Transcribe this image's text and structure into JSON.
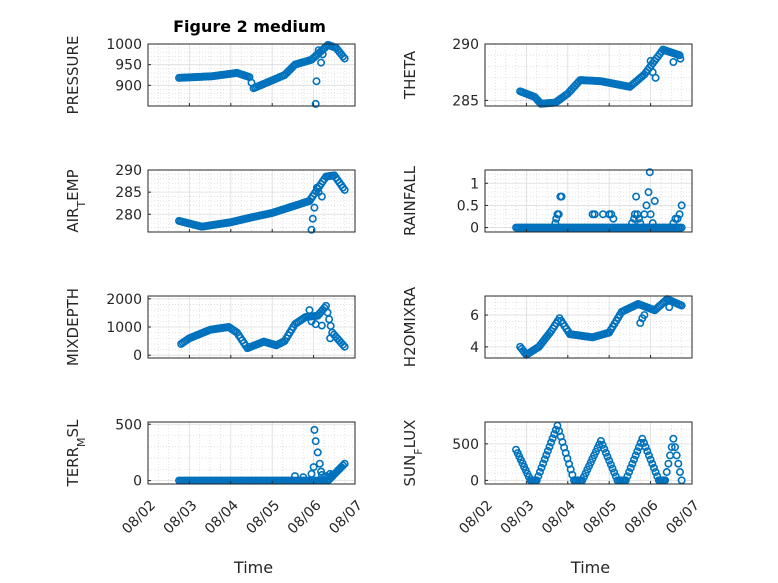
{
  "figure": {
    "title": "Figure 2 medium",
    "xlabel": "Time",
    "xticks": [
      "08/02",
      "08/03",
      "08/04",
      "08/05",
      "08/06",
      "08/07"
    ]
  },
  "colors": {
    "marker": "#0072BD",
    "grid": "#dcdcdc",
    "axis": "#262626",
    "text": "#262626"
  },
  "chart_data": [
    {
      "type": "scatter",
      "panel": "pressure",
      "title": "Figure 2 medium",
      "ylabel": "PRESSURE",
      "ylabel_parts": [
        {
          "t": "PRESSURE"
        }
      ],
      "ylim": [
        850,
        1000
      ],
      "yticks": [
        900,
        950,
        1000
      ],
      "xlim": [
        0,
        5
      ],
      "segments": [
        {
          "x": [
            0.75,
            1.55
          ],
          "y": [
            918,
            922
          ]
        },
        {
          "x": [
            1.55,
            2.15
          ],
          "y": [
            922,
            930
          ]
        },
        {
          "x": [
            2.15,
            2.45
          ],
          "y": [
            930,
            920
          ]
        },
        {
          "x": [
            2.45,
            2.55
          ],
          "y": [
            920,
            893
          ]
        },
        {
          "x": [
            2.55,
            3.0
          ],
          "y": [
            893,
            912
          ]
        },
        {
          "x": [
            3.0,
            3.3
          ],
          "y": [
            912,
            925
          ]
        },
        {
          "x": [
            3.3,
            3.55
          ],
          "y": [
            925,
            950
          ]
        },
        {
          "x": [
            3.55,
            3.95
          ],
          "y": [
            950,
            962
          ]
        },
        {
          "x": [
            3.95,
            4.35
          ],
          "y": [
            962,
            998
          ]
        },
        {
          "x": [
            4.35,
            4.55
          ],
          "y": [
            998,
            990
          ]
        },
        {
          "x": [
            4.55,
            4.75
          ],
          "y": [
            990,
            965
          ]
        }
      ],
      "extra": [
        [
          4.05,
          855
        ],
        [
          4.07,
          910
        ],
        [
          4.12,
          985
        ],
        [
          4.18,
          955
        ],
        [
          4.22,
          975
        ]
      ]
    },
    {
      "type": "scatter",
      "panel": "theta",
      "ylabel": "THETA",
      "ylabel_parts": [
        {
          "t": "THETA"
        }
      ],
      "ylim": [
        284.5,
        290
      ],
      "yticks": [
        285,
        290
      ],
      "xlim": [
        0,
        5
      ],
      "segments": [
        {
          "x": [
            0.85,
            1.2
          ],
          "y": [
            285.8,
            285.3
          ]
        },
        {
          "x": [
            1.2,
            1.35
          ],
          "y": [
            285.3,
            284.7
          ]
        },
        {
          "x": [
            1.35,
            1.7
          ],
          "y": [
            284.7,
            284.8
          ]
        },
        {
          "x": [
            1.7,
            2.0
          ],
          "y": [
            284.8,
            285.6
          ]
        },
        {
          "x": [
            2.0,
            2.3
          ],
          "y": [
            285.6,
            286.8
          ]
        },
        {
          "x": [
            2.3,
            2.8
          ],
          "y": [
            286.8,
            286.7
          ]
        },
        {
          "x": [
            2.8,
            3.5
          ],
          "y": [
            286.7,
            286.2
          ]
        },
        {
          "x": [
            3.5,
            3.85
          ],
          "y": [
            286.2,
            287.3
          ]
        },
        {
          "x": [
            3.85,
            4.3
          ],
          "y": [
            287.3,
            289.5
          ]
        },
        {
          "x": [
            4.3,
            4.7
          ],
          "y": [
            289.5,
            289.0
          ]
        }
      ],
      "extra": [
        [
          4.0,
          288.5
        ],
        [
          4.05,
          287.5
        ],
        [
          4.12,
          287.0
        ],
        [
          4.55,
          288.4
        ],
        [
          4.72,
          288.7
        ]
      ]
    },
    {
      "type": "scatter",
      "panel": "air_temp",
      "ylabel": "AIR_TEMP",
      "ylabel_parts": [
        {
          "t": "AIR"
        },
        {
          "t": "T",
          "sub": true
        },
        {
          "t": "EMP"
        }
      ],
      "ylim": [
        276,
        290
      ],
      "yticks": [
        280,
        285,
        290
      ],
      "xlim": [
        0,
        5
      ],
      "segments": [
        {
          "x": [
            0.75,
            1.3
          ],
          "y": [
            278.5,
            277.2
          ]
        },
        {
          "x": [
            1.3,
            2.0
          ],
          "y": [
            277.2,
            278.2
          ]
        },
        {
          "x": [
            2.0,
            2.5
          ],
          "y": [
            278.2,
            279.3
          ]
        },
        {
          "x": [
            2.5,
            3.0
          ],
          "y": [
            279.3,
            280.3
          ]
        },
        {
          "x": [
            3.0,
            3.4
          ],
          "y": [
            280.3,
            281.5
          ]
        },
        {
          "x": [
            3.4,
            3.9
          ],
          "y": [
            281.5,
            283.0
          ]
        },
        {
          "x": [
            3.9,
            4.3
          ],
          "y": [
            283.0,
            288.5
          ]
        },
        {
          "x": [
            4.3,
            4.5
          ],
          "y": [
            288.5,
            288.8
          ]
        },
        {
          "x": [
            4.5,
            4.75
          ],
          "y": [
            288.8,
            285.5
          ]
        }
      ],
      "extra": [
        [
          3.95,
          276.5
        ],
        [
          3.98,
          279.0
        ],
        [
          4.02,
          281.5
        ],
        [
          4.08,
          286.0
        ],
        [
          4.12,
          285.0
        ],
        [
          4.2,
          284.0
        ]
      ]
    },
    {
      "type": "scatter",
      "panel": "rainfall",
      "ylabel": "RAINFALL",
      "ylabel_parts": [
        {
          "t": "RAINFALL"
        }
      ],
      "ylim": [
        -0.1,
        1.3
      ],
      "yticks": [
        0,
        0.5,
        1
      ],
      "xlim": [
        0,
        5
      ],
      "segments": [
        {
          "x": [
            0.75,
            4.75
          ],
          "y": [
            0,
            0
          ]
        }
      ],
      "extra": [
        [
          1.7,
          0.1
        ],
        [
          1.72,
          0.2
        ],
        [
          1.75,
          0.3
        ],
        [
          1.78,
          0.3
        ],
        [
          1.82,
          0.7
        ],
        [
          1.85,
          0.7
        ],
        [
          2.6,
          0.3
        ],
        [
          2.65,
          0.3
        ],
        [
          2.85,
          0.3
        ],
        [
          3.0,
          0.3
        ],
        [
          3.05,
          0.3
        ],
        [
          3.1,
          0.2
        ],
        [
          3.55,
          0.1
        ],
        [
          3.6,
          0.2
        ],
        [
          3.62,
          0.3
        ],
        [
          3.65,
          0.7
        ],
        [
          3.68,
          0.3
        ],
        [
          3.72,
          0.2
        ],
        [
          3.75,
          0.1
        ],
        [
          3.85,
          0.3
        ],
        [
          3.9,
          0.5
        ],
        [
          3.95,
          0.8
        ],
        [
          3.98,
          1.25
        ],
        [
          4.0,
          0.3
        ],
        [
          4.05,
          0.1
        ],
        [
          4.1,
          0.6
        ],
        [
          4.55,
          0.1
        ],
        [
          4.6,
          0.2
        ],
        [
          4.65,
          0.2
        ],
        [
          4.7,
          0.3
        ],
        [
          4.75,
          0.5
        ]
      ]
    },
    {
      "type": "scatter",
      "panel": "mixdepth",
      "ylabel": "MIXDEPTH",
      "ylabel_parts": [
        {
          "t": "MIXDEPTH"
        }
      ],
      "ylim": [
        -100,
        2100
      ],
      "yticks": [
        0,
        1000,
        2000
      ],
      "xlim": [
        0,
        5
      ],
      "segments": [
        {
          "x": [
            0.8,
            1.0
          ],
          "y": [
            400,
            600
          ]
        },
        {
          "x": [
            1.0,
            1.5
          ],
          "y": [
            600,
            900
          ]
        },
        {
          "x": [
            1.5,
            1.95
          ],
          "y": [
            900,
            1000
          ]
        },
        {
          "x": [
            1.95,
            2.15
          ],
          "y": [
            1000,
            800
          ]
        },
        {
          "x": [
            2.15,
            2.4
          ],
          "y": [
            800,
            250
          ]
        },
        {
          "x": [
            2.4,
            2.8
          ],
          "y": [
            250,
            480
          ]
        },
        {
          "x": [
            2.8,
            3.1
          ],
          "y": [
            480,
            350
          ]
        },
        {
          "x": [
            3.1,
            3.3
          ],
          "y": [
            350,
            500
          ]
        },
        {
          "x": [
            3.3,
            3.55
          ],
          "y": [
            500,
            1100
          ]
        },
        {
          "x": [
            3.55,
            3.8
          ],
          "y": [
            1100,
            1350
          ]
        },
        {
          "x": [
            3.8,
            4.1
          ],
          "y": [
            1350,
            1400
          ]
        },
        {
          "x": [
            4.1,
            4.3
          ],
          "y": [
            1400,
            1750
          ]
        },
        {
          "x": [
            4.3,
            4.45
          ],
          "y": [
            1750,
            800
          ]
        },
        {
          "x": [
            4.45,
            4.75
          ],
          "y": [
            800,
            300
          ]
        }
      ],
      "extra": [
        [
          3.9,
          1600
        ],
        [
          3.95,
          1200
        ],
        [
          4.05,
          1100
        ],
        [
          4.2,
          1050
        ],
        [
          4.4,
          600
        ]
      ]
    },
    {
      "type": "scatter",
      "panel": "h2omixra",
      "ylabel": "H2OMIXRA",
      "ylabel_parts": [
        {
          "t": "H2OMIXRA"
        }
      ],
      "ylim": [
        3.3,
        7.2
      ],
      "yticks": [
        4,
        6
      ],
      "xlim": [
        0,
        5
      ],
      "segments": [
        {
          "x": [
            0.85,
            1.0
          ],
          "y": [
            4.0,
            3.5
          ]
        },
        {
          "x": [
            1.0,
            1.3
          ],
          "y": [
            3.5,
            4.0
          ]
        },
        {
          "x": [
            1.3,
            1.6
          ],
          "y": [
            4.0,
            5.0
          ]
        },
        {
          "x": [
            1.6,
            1.8
          ],
          "y": [
            5.0,
            5.8
          ]
        },
        {
          "x": [
            1.8,
            2.05
          ],
          "y": [
            5.8,
            4.8
          ]
        },
        {
          "x": [
            2.05,
            2.6
          ],
          "y": [
            4.8,
            4.6
          ]
        },
        {
          "x": [
            2.6,
            3.0
          ],
          "y": [
            4.6,
            4.9
          ]
        },
        {
          "x": [
            3.0,
            3.3
          ],
          "y": [
            4.9,
            6.2
          ]
        },
        {
          "x": [
            3.3,
            3.7
          ],
          "y": [
            6.2,
            6.7
          ]
        },
        {
          "x": [
            3.7,
            4.1
          ],
          "y": [
            6.7,
            6.3
          ]
        },
        {
          "x": [
            4.1,
            4.4
          ],
          "y": [
            6.3,
            7.0
          ]
        },
        {
          "x": [
            4.4,
            4.75
          ],
          "y": [
            7.0,
            6.6
          ]
        }
      ],
      "extra": [
        [
          3.75,
          5.5
        ],
        [
          3.8,
          5.8
        ],
        [
          3.85,
          6.0
        ],
        [
          4.45,
          6.5
        ]
      ]
    },
    {
      "type": "scatter",
      "panel": "terr_msl",
      "ylabel": "TERR_MSL",
      "ylabel_parts": [
        {
          "t": "TERR"
        },
        {
          "t": "M",
          "sub": true
        },
        {
          "t": "SL"
        }
      ],
      "ylim": [
        -30,
        520
      ],
      "yticks": [
        0,
        500
      ],
      "xlim": [
        0,
        5
      ],
      "segments": [
        {
          "x": [
            0.75,
            4.35
          ],
          "y": [
            0,
            0
          ]
        },
        {
          "x": [
            4.35,
            4.75
          ],
          "y": [
            0,
            150
          ]
        }
      ],
      "extra": [
        [
          3.55,
          40
        ],
        [
          3.75,
          30
        ],
        [
          3.95,
          60
        ],
        [
          4.0,
          120
        ],
        [
          4.02,
          450
        ],
        [
          4.05,
          350
        ],
        [
          4.1,
          250
        ],
        [
          4.15,
          150
        ],
        [
          4.18,
          80
        ],
        [
          4.2,
          50
        ],
        [
          4.25,
          30
        ],
        [
          4.3,
          40
        ],
        [
          4.4,
          60
        ],
        [
          4.45,
          50
        ]
      ]
    },
    {
      "type": "scatter",
      "panel": "sun_flux",
      "ylabel": "SUN_FLUX",
      "ylabel_parts": [
        {
          "t": "SUN"
        },
        {
          "t": "F",
          "sub": true
        },
        {
          "t": "LUX"
        }
      ],
      "ylim": [
        -50,
        800
      ],
      "yticks": [
        0,
        500
      ],
      "xlim": [
        0,
        5
      ],
      "segments": [
        {
          "x": [
            0.75,
            1.1
          ],
          "y": [
            420,
            0
          ]
        },
        {
          "x": [
            1.1,
            1.25
          ],
          "y": [
            0,
            0
          ]
        },
        {
          "x": [
            1.25,
            1.75
          ],
          "y": [
            0,
            750
          ]
        },
        {
          "x": [
            1.75,
            2.15
          ],
          "y": [
            750,
            0
          ]
        },
        {
          "x": [
            2.15,
            2.35
          ],
          "y": [
            0,
            0
          ]
        },
        {
          "x": [
            2.35,
            2.8
          ],
          "y": [
            0,
            540
          ]
        },
        {
          "x": [
            2.8,
            3.2
          ],
          "y": [
            540,
            0
          ]
        },
        {
          "x": [
            3.2,
            3.4
          ],
          "y": [
            0,
            0
          ]
        },
        {
          "x": [
            3.4,
            3.8
          ],
          "y": [
            0,
            570
          ]
        },
        {
          "x": [
            3.8,
            4.2
          ],
          "y": [
            570,
            0
          ]
        },
        {
          "x": [
            4.2,
            4.35
          ],
          "y": [
            0,
            0
          ]
        },
        {
          "x": [
            4.35,
            4.55
          ],
          "y": [
            0,
            570
          ]
        },
        {
          "x": [
            4.55,
            4.75
          ],
          "y": [
            570,
            0
          ]
        }
      ],
      "extra": []
    }
  ]
}
